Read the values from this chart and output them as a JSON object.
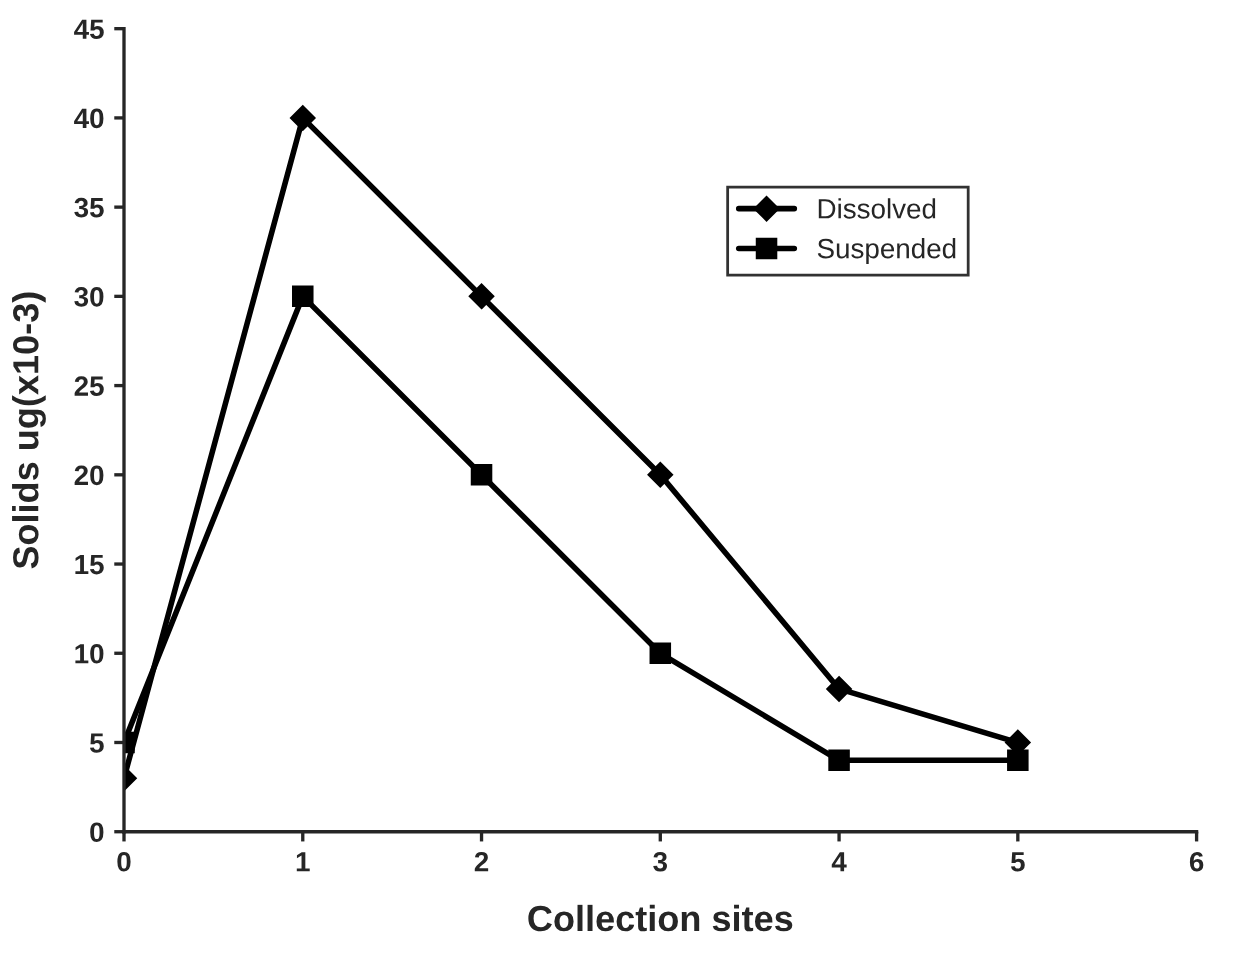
{
  "chart_data": {
    "type": "line",
    "xlabel": "Collection sites",
    "ylabel": "Solids ug(x10-3)",
    "x": [
      0,
      1,
      2,
      3,
      4,
      5
    ],
    "series": [
      {
        "name": "Dissolved",
        "color": "#000000",
        "marker": "diamond",
        "values": [
          3,
          40,
          30,
          20,
          8,
          5
        ]
      },
      {
        "name": "Suspended",
        "color": "#000000",
        "marker": "square",
        "values": [
          5,
          30,
          20,
          10,
          4,
          4
        ]
      }
    ],
    "xlim": [
      0,
      6
    ],
    "xticks": [
      0,
      1,
      2,
      3,
      4,
      5,
      6
    ],
    "ylim": [
      0,
      45
    ],
    "yticks": [
      0,
      5,
      10,
      15,
      20,
      25,
      30,
      35,
      40,
      45
    ],
    "grid": false,
    "legend": "top right",
    "line_style": "solid"
  }
}
